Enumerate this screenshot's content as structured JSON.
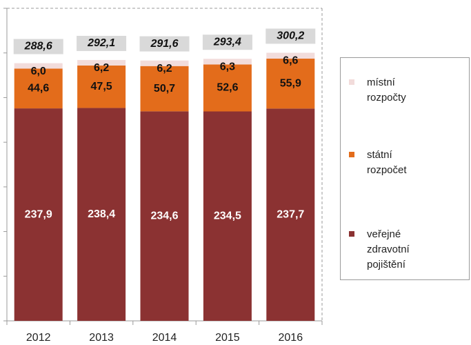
{
  "chart_data": {
    "type": "stacked_bar",
    "categories": [
      "2012",
      "2013",
      "2014",
      "2015",
      "2016"
    ],
    "series": [
      {
        "name": "veřejné\nzdravotní\npojištění",
        "color": "#8b3232",
        "values": [
          237.9,
          238.4,
          234.6,
          234.5,
          237.7
        ],
        "value_labels": [
          "237,9",
          "238,4",
          "234,6",
          "234,5",
          "237,7"
        ]
      },
      {
        "name": "státní\nrozpočet",
        "color": "#e36c1b",
        "values": [
          44.6,
          47.5,
          50.7,
          52.6,
          55.9
        ],
        "value_labels": [
          "44,6",
          "47,5",
          "50,7",
          "52,6",
          "55,9"
        ]
      },
      {
        "name": "místní\nrozpočty",
        "color": "#f2dcdb",
        "values": [
          6.0,
          6.2,
          6.2,
          6.3,
          6.6
        ],
        "value_labels": [
          "6,0",
          "6,2",
          "6,2",
          "6,3",
          "6,6"
        ]
      }
    ],
    "totals": [
      288.6,
      292.1,
      291.6,
      293.4,
      300.2
    ],
    "total_labels": [
      "288,6",
      "292,1",
      "291,6",
      "293,4",
      "300,2"
    ],
    "ylim": [
      0,
      350
    ],
    "yticks": [
      0,
      50,
      100,
      150,
      200,
      250,
      300,
      350
    ]
  }
}
